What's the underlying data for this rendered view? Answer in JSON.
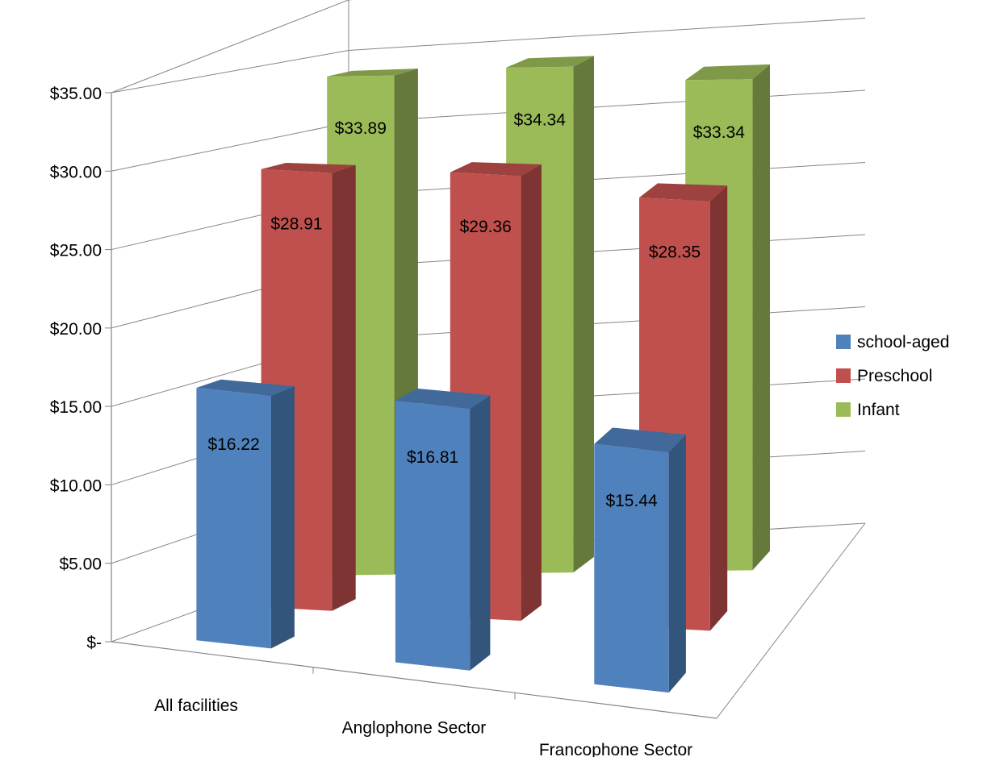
{
  "chart_data": {
    "type": "bar",
    "subtype": "3d-column",
    "title": "",
    "xlabel": "",
    "ylabel": "",
    "categories": [
      "All facilities",
      "Anglophone Sector",
      "Francophone Sector"
    ],
    "y_ticks": [
      "$-",
      "$5.00",
      "$10.00",
      "$15.00",
      "$20.00",
      "$25.00",
      "$30.00",
      "$35.00"
    ],
    "ylim": [
      0,
      35
    ],
    "grid": true,
    "legend_position": "right",
    "series": [
      {
        "name": "school-aged",
        "values": [
          16.22,
          16.81,
          15.44
        ],
        "labels": [
          "$16.22",
          "$16.81",
          "$15.44"
        ],
        "color": "#4F81BD"
      },
      {
        "name": "Preschool",
        "values": [
          28.91,
          29.36,
          28.35
        ],
        "labels": [
          "$28.91",
          "$29.36",
          "$28.35"
        ],
        "color": "#C0504D"
      },
      {
        "name": "Infant",
        "values": [
          33.89,
          34.34,
          33.34
        ],
        "labels": [
          "$33.89",
          "$34.34",
          "$33.34"
        ],
        "color": "#9BBB59"
      }
    ]
  }
}
